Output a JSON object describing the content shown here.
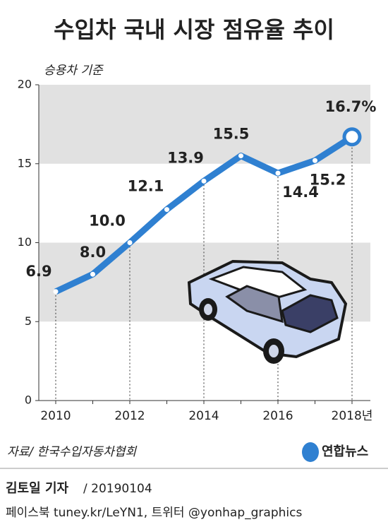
{
  "chart_data": {
    "type": "line",
    "title": "수입차 국내 시장 점유율 추이",
    "subtitle": "승용차 기준",
    "categories": [
      "2010",
      null,
      "2012",
      null,
      "2014",
      null,
      "2016",
      null,
      "2018년"
    ],
    "values": [
      6.9,
      8.0,
      10.0,
      12.1,
      13.9,
      15.5,
      14.4,
      15.2,
      16.7
    ],
    "value_labels": [
      "6.9",
      "8.0",
      "10.0",
      "12.1",
      "13.9",
      "15.5",
      "14.4",
      "15.2",
      "16.7%"
    ],
    "color": "#2f80d1",
    "ylim": [
      0,
      20
    ],
    "yticks": [
      0,
      5,
      10,
      15,
      20
    ],
    "bands": true,
    "source": "자료/ 한국수입자동차협회",
    "logo": "연합뉴스",
    "byline": "김토일 기자",
    "date": "/ 20190104",
    "footer": "페이스북 tuney.kr/LeYN1, 트위터 @yonhap_graphics"
  }
}
